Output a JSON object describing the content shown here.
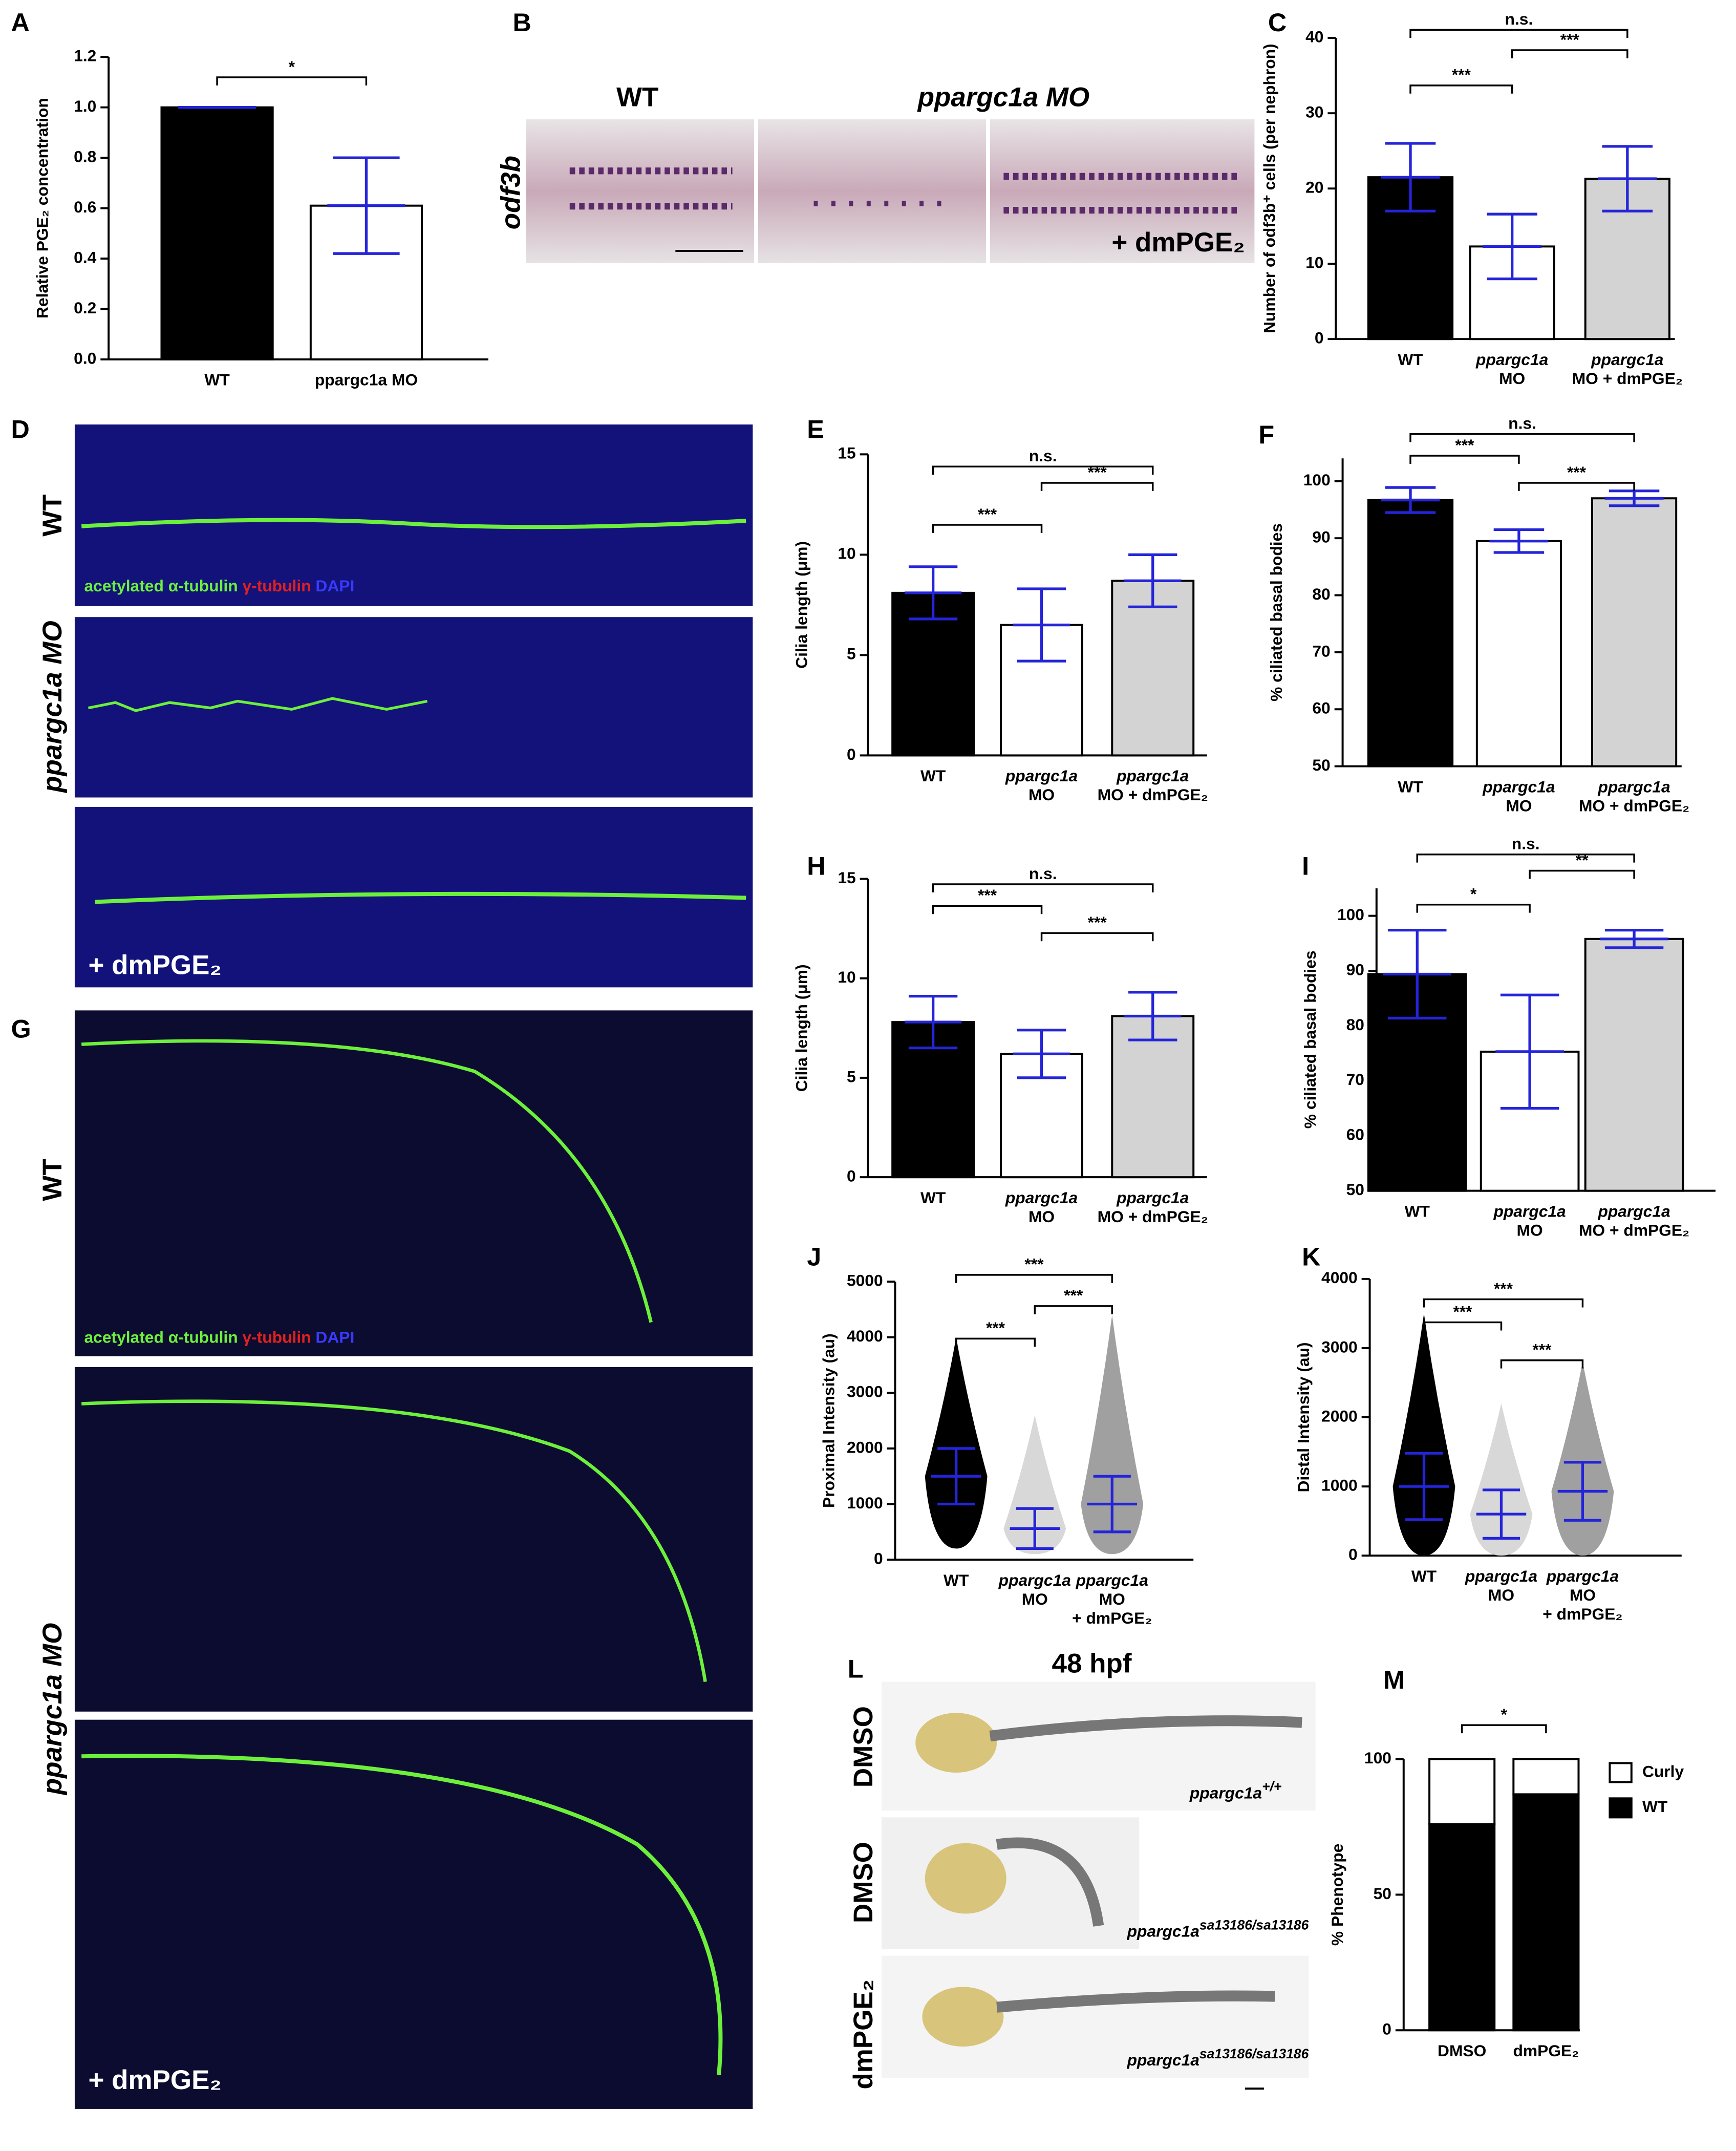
{
  "chart_data": [
    {
      "panel": "A",
      "type": "bar",
      "ylabel": "Relative PGE₂ concentration",
      "categories": [
        [
          "WT"
        ],
        [
          "ppargc1a MO"
        ]
      ],
      "values": [
        1.0,
        0.61
      ],
      "errors": [
        0.0,
        0.19
      ],
      "colors": [
        "#000000",
        "#ffffff"
      ],
      "error_color": "#2424d8",
      "ylim": [
        0,
        1.2
      ],
      "yticks": [
        {
          "value": 0,
          "label": "0.0"
        },
        {
          "value": 0.2,
          "label": "0.2"
        },
        {
          "value": 0.4,
          "label": "0.4"
        },
        {
          "value": 0.6,
          "label": "0.6"
        },
        {
          "value": 0.8,
          "label": "0.8"
        },
        {
          "value": 1.0,
          "label": "1.0"
        },
        {
          "value": 1.2,
          "label": "1.2"
        }
      ],
      "comparisons": [
        {
          "pair": [
            0,
            1
          ],
          "label": "*"
        }
      ]
    },
    {
      "panel": "C",
      "type": "bar",
      "ylabel": "Number of odf3b⁺ cells (per nephron)",
      "categories": [
        [
          "WT"
        ],
        [
          "ppargc1a",
          "MO"
        ],
        [
          "ppargc1a",
          "MO + dmPGE₂"
        ]
      ],
      "values": [
        21.5,
        12.3,
        21.3
      ],
      "errors": [
        4.5,
        4.3,
        4.3
      ],
      "colors": [
        "#000000",
        "#ffffff",
        "#d3d3d3"
      ],
      "error_color": "#2424d8",
      "ylim": [
        0,
        40
      ],
      "yticks": [
        0,
        10,
        20,
        30,
        40
      ],
      "comparisons": [
        {
          "pair": [
            0,
            1
          ],
          "label": "***"
        },
        {
          "pair": [
            1,
            2
          ],
          "label": "***"
        },
        {
          "pair": [
            0,
            2
          ],
          "label": "n.s."
        }
      ]
    },
    {
      "panel": "E",
      "type": "bar",
      "ylabel": "Cilia length (μm)",
      "categories": [
        [
          "WT"
        ],
        [
          "ppargc1a",
          "MO"
        ],
        [
          "ppargc1a",
          "MO + dmPGE₂"
        ]
      ],
      "values": [
        8.1,
        6.5,
        8.7
      ],
      "errors": [
        1.3,
        1.8,
        1.3
      ],
      "colors": [
        "#000000",
        "#ffffff",
        "#d3d3d3"
      ],
      "error_color": "#2424d8",
      "ylim": [
        0,
        15
      ],
      "yticks": [
        0,
        5,
        10,
        15
      ],
      "comparisons": [
        {
          "pair": [
            0,
            1
          ],
          "label": "***"
        },
        {
          "pair": [
            1,
            2
          ],
          "label": "***"
        },
        {
          "pair": [
            0,
            2
          ],
          "label": "n.s."
        }
      ]
    },
    {
      "panel": "F",
      "type": "bar",
      "ylabel": "% ciliated basal bodies",
      "categories": [
        [
          "WT"
        ],
        [
          "ppargc1a",
          "MO"
        ],
        [
          "ppargc1a",
          "MO + dmPGE₂"
        ]
      ],
      "values": [
        96.7,
        89.5,
        97
      ],
      "errors": [
        2.2,
        2,
        1.3
      ],
      "colors": [
        "#000000",
        "#ffffff",
        "#d3d3d3"
      ],
      "error_color": "#2424d8",
      "ylim": [
        50,
        104
      ],
      "yticks": [
        50,
        60,
        70,
        80,
        90,
        100
      ],
      "comparisons": [
        {
          "pair": [
            0,
            1
          ],
          "label": "***"
        },
        {
          "pair": [
            1,
            2
          ],
          "label": "***"
        },
        {
          "pair": [
            0,
            2
          ],
          "label": "n.s."
        }
      ]
    },
    {
      "panel": "H",
      "type": "bar",
      "ylabel": "Cilia length (μm)",
      "categories": [
        [
          "WT"
        ],
        [
          "ppargc1a",
          "MO"
        ],
        [
          "ppargc1a",
          "MO + dmPGE₂"
        ]
      ],
      "values": [
        7.8,
        6.2,
        8.1
      ],
      "errors": [
        1.3,
        1.2,
        1.2
      ],
      "colors": [
        "#000000",
        "#ffffff",
        "#d3d3d3"
      ],
      "error_color": "#2424d8",
      "ylim": [
        0,
        15
      ],
      "yticks": [
        0,
        5,
        10,
        15
      ],
      "comparisons": [
        {
          "pair": [
            0,
            1
          ],
          "label": "***"
        },
        {
          "pair": [
            1,
            2
          ],
          "label": "***"
        },
        {
          "pair": [
            0,
            2
          ],
          "label": "n.s."
        }
      ]
    },
    {
      "panel": "I",
      "type": "bar",
      "ylabel": "% ciliated basal bodies",
      "categories": [
        [
          "WT"
        ],
        [
          "ppargc1a",
          "MO"
        ],
        [
          "ppargc1a",
          "MO + dmPGE₂"
        ]
      ],
      "values": [
        89.4,
        75.3,
        95.8
      ],
      "errors": [
        8,
        10.3,
        1.6
      ],
      "colors": [
        "#000000",
        "#ffffff",
        "#d3d3d3"
      ],
      "error_color": "#2424d8",
      "ylim": [
        50,
        105
      ],
      "yticks": [
        50,
        60,
        70,
        80,
        90,
        100
      ],
      "comparisons": [
        {
          "pair": [
            0,
            1
          ],
          "label": "*"
        },
        {
          "pair": [
            1,
            2
          ],
          "label": "**"
        },
        {
          "pair": [
            0,
            2
          ],
          "label": "n.s."
        }
      ]
    },
    {
      "panel": "J",
      "type": "dot",
      "ylabel": "Proximal Intensity (au)",
      "categories": [
        [
          "WT"
        ],
        [
          "ppargc1a",
          "MO"
        ],
        [
          "ppargc1a",
          "MO",
          "+ dmPGE₂"
        ]
      ],
      "values": [
        1500,
        560,
        1000
      ],
      "errors": [
        500,
        360,
        500
      ],
      "ranges": [
        [
          200,
          4000
        ],
        [
          100,
          2600
        ],
        [
          100,
          4400
        ]
      ],
      "colors": [
        "#000000",
        "#d8d8d8",
        "#a0a0a0"
      ],
      "error_color": "#2424d8",
      "ylim": [
        0,
        5000
      ],
      "yticks": [
        0,
        1000,
        2000,
        3000,
        4000,
        5000
      ],
      "comparisons": [
        {
          "pair": [
            0,
            1
          ],
          "label": "***"
        },
        {
          "pair": [
            1,
            2
          ],
          "label": "***"
        },
        {
          "pair": [
            0,
            2
          ],
          "label": "***"
        }
      ]
    },
    {
      "panel": "K",
      "type": "dot",
      "ylabel": "Distal Intensity (au)",
      "categories": [
        [
          "WT"
        ],
        [
          "ppargc1a",
          "MO"
        ],
        [
          "ppargc1a",
          "MO",
          "+ dmPGE₂"
        ]
      ],
      "values": [
        1000,
        600,
        930
      ],
      "errors": [
        480,
        350,
        420
      ],
      "ranges": [
        [
          0,
          3500
        ],
        [
          0,
          2200
        ],
        [
          0,
          2800
        ]
      ],
      "colors": [
        "#000000",
        "#d8d8d8",
        "#a0a0a0"
      ],
      "error_color": "#2424d8",
      "ylim": [
        0,
        4000
      ],
      "yticks": [
        0,
        1000,
        2000,
        3000,
        4000
      ],
      "comparisons": [
        {
          "pair": [
            0,
            1
          ],
          "label": "***"
        },
        {
          "pair": [
            1,
            2
          ],
          "label": "***"
        },
        {
          "pair": [
            0,
            2
          ],
          "label": "***"
        }
      ]
    },
    {
      "panel": "M",
      "type": "stacked_bar",
      "ylabel": "% Phenotype",
      "categories": [
        [
          "DMSO"
        ],
        [
          "dmPGE₂"
        ]
      ],
      "series": [
        {
          "name": "WT",
          "color": "#000000",
          "values": [
            76,
            87
          ]
        },
        {
          "name": "Curly",
          "color": "#ffffff",
          "values": [
            24,
            13
          ]
        }
      ],
      "ylim": [
        0,
        100
      ],
      "yticks": [
        0,
        50,
        100
      ],
      "legend": "right",
      "comparisons": [
        {
          "pair": [
            0,
            1
          ],
          "label": "*"
        }
      ]
    }
  ],
  "figures": {
    "B": {
      "panel": "B",
      "groups": [
        "WT",
        "ppargc1a MO"
      ],
      "gene": "odf3b",
      "treatment": "+ dmPGE₂"
    },
    "D": {
      "panel": "D",
      "rows": [
        "WT",
        "ppargc1a MO",
        "+ dmPGE₂"
      ],
      "stain": [
        "acetylated α-tubulin",
        "γ-tubulin",
        "DAPI"
      ]
    },
    "G": {
      "panel": "G",
      "rows": [
        "WT",
        "ppargc1a MO",
        "+ dmPGE₂"
      ],
      "stain": [
        "acetylated α-tubulin",
        "γ-tubulin",
        "DAPI"
      ]
    },
    "L": {
      "panel": "L",
      "title": "48 hpf",
      "rows": [
        "DMSO",
        "DMSO",
        "dmPGE₂"
      ],
      "genotypes": [
        {
          "gene": "ppargc1a",
          "allele": "+/+"
        },
        {
          "gene": "ppargc1a",
          "allele": "sa13186/sa13186"
        },
        {
          "gene": "ppargc1a",
          "allele": "sa13186/sa13186"
        }
      ]
    }
  }
}
